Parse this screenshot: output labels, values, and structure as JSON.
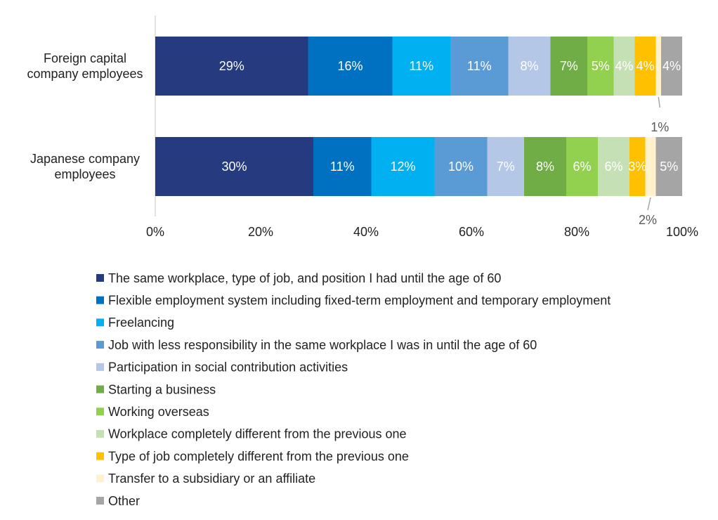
{
  "chart_data": {
    "type": "stacked-bar-horizontal",
    "categories": [
      "Foreign capital company employees",
      "Japanese company employees"
    ],
    "series": [
      {
        "name": "The same workplace, type of job, and position I had until the age of 60",
        "color": "#253a7f",
        "values": [
          29,
          30
        ],
        "value_labels": [
          "29%",
          "30%"
        ]
      },
      {
        "name": "Flexible employment system including fixed-term employment and temporary employment",
        "color": "#0070c0",
        "values": [
          16,
          11
        ],
        "value_labels": [
          "16%",
          "11%"
        ]
      },
      {
        "name": "Freelancing",
        "color": "#00b0f0",
        "values": [
          11,
          12
        ],
        "value_labels": [
          "11%",
          "12%"
        ]
      },
      {
        "name": "Job with less responsibility in the same workplace I was in until the age of 60",
        "color": "#5b9bd5",
        "values": [
          11,
          10
        ],
        "value_labels": [
          "11%",
          "10%"
        ]
      },
      {
        "name": "Participation in social contribution activities",
        "color": "#b4c7e7",
        "values": [
          8,
          7
        ],
        "value_labels": [
          "8%",
          "7%"
        ]
      },
      {
        "name": "Starting a business",
        "color": "#70ad47",
        "values": [
          7,
          8
        ],
        "value_labels": [
          "7%",
          "8%"
        ]
      },
      {
        "name": "Working overseas",
        "color": "#92d050",
        "values": [
          5,
          6
        ],
        "value_labels": [
          "5%",
          "6%"
        ]
      },
      {
        "name": "Workplace completely different from the previous one",
        "color": "#c5e0b4",
        "values": [
          4,
          6
        ],
        "value_labels": [
          "4%",
          "6%"
        ]
      },
      {
        "name": "Type of job completely different from the previous one",
        "color": "#ffc000",
        "values": [
          4,
          3
        ],
        "value_labels": [
          "4%",
          "3%"
        ]
      },
      {
        "name": "Transfer to a subsidiary or an affiliate",
        "color": "#fff2cc",
        "values": [
          1,
          2
        ],
        "value_labels": [
          "1%",
          "2%"
        ]
      },
      {
        "name": "Other",
        "color": "#a5a5a5",
        "values": [
          4,
          5
        ],
        "value_labels": [
          "4%",
          "5%"
        ]
      }
    ],
    "xlim": [
      0,
      100
    ],
    "xticks": [
      {
        "value": 0,
        "label": "0%"
      },
      {
        "value": 20,
        "label": "20%"
      },
      {
        "value": 40,
        "label": "40%"
      },
      {
        "value": 60,
        "label": "60%"
      },
      {
        "value": 80,
        "label": "80%"
      },
      {
        "value": 100,
        "label": "100%"
      }
    ]
  }
}
